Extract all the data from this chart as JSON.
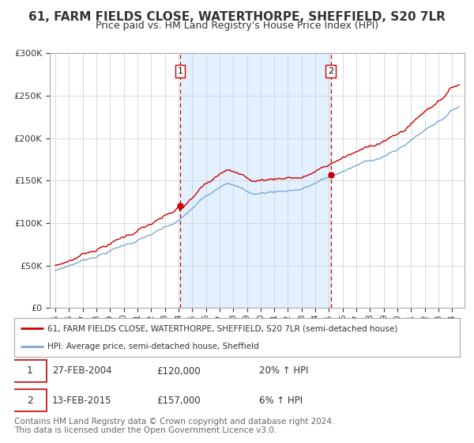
{
  "title": "61, FARM FIELDS CLOSE, WATERTHORPE, SHEFFIELD, S20 7LR",
  "subtitle": "Price paid vs. HM Land Registry's House Price Index (HPI)",
  "legend_line1": "61, FARM FIELDS CLOSE, WATERTHORPE, SHEFFIELD, S20 7LR (semi-detached house)",
  "legend_line2": "HPI: Average price, semi-detached house, Sheffield",
  "annotation1_date": "27-FEB-2004",
  "annotation1_price": "£120,000",
  "annotation1_hpi": "20% ↑ HPI",
  "annotation1_year": 2004.12,
  "annotation1_value": 120000,
  "annotation2_date": "13-FEB-2015",
  "annotation2_price": "£157,000",
  "annotation2_hpi": "6% ↑ HPI",
  "annotation2_year": 2015.12,
  "annotation2_value": 157000,
  "property_color": "#cc0000",
  "hpi_line_color": "#7aa8d4",
  "shade_color": "#ddeeff",
  "vline_color": "#cc0000",
  "background_color": "#ffffff",
  "plot_bg_color": "#ffffff",
  "ylim": [
    0,
    300000
  ],
  "yticks": [
    0,
    50000,
    100000,
    150000,
    200000,
    250000,
    300000
  ],
  "copyright_text": "Contains HM Land Registry data © Crown copyright and database right 2024.\nThis data is licensed under the Open Government Licence v3.0.",
  "footnote_fontsize": 7.5,
  "title_fontsize": 11,
  "subtitle_fontsize": 9
}
